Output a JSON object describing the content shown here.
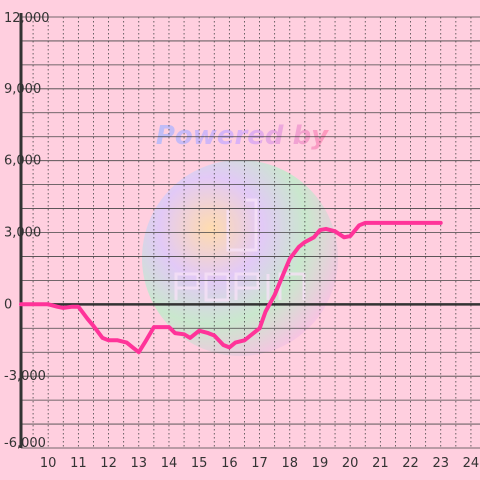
{
  "watermark": {
    "text": "Powered by",
    "brand": "pop-in"
  },
  "colors": {
    "background": "#ffcfdf",
    "line": "#ff3399",
    "grid": "#444444",
    "axis": "#333333",
    "zero_line": "#333333"
  },
  "chart_data": {
    "type": "line",
    "title": "",
    "xlabel": "",
    "ylabel": "",
    "xlim": [
      9.1,
      24.3
    ],
    "ylim": [
      -6000,
      12000
    ],
    "x_ticks": [
      10,
      11,
      12,
      13,
      14,
      15,
      16,
      17,
      18,
      19,
      20,
      21,
      22,
      23,
      24
    ],
    "x_tick_labels": [
      "10",
      "11",
      "12",
      "13",
      "14",
      "15",
      "16",
      "17",
      "18",
      "19",
      "20",
      "21",
      "22",
      "23",
      "24"
    ],
    "y_ticks": [
      -6000,
      -3000,
      0,
      3000,
      6000,
      9000,
      12000
    ],
    "y_tick_labels": [
      "-6,000",
      "-3,000",
      "0",
      "3,000",
      "6,000",
      "9,000",
      "12,000"
    ],
    "y_minor_step": 1000,
    "x_minor_step": 0.5,
    "grid": true,
    "series": [
      {
        "x": [
          9.1,
          10.0,
          10.3,
          10.5,
          10.8,
          11.0,
          11.3,
          11.5,
          11.8,
          12.0,
          12.3,
          12.6,
          12.8,
          13.0,
          13.2,
          13.5,
          13.7,
          14.0,
          14.2,
          14.5,
          14.7,
          15.0,
          15.3,
          15.5,
          15.8,
          16.0,
          16.2,
          16.5,
          16.7,
          17.0,
          17.2,
          17.5,
          17.8,
          18.0,
          18.3,
          18.5,
          18.8,
          19.0,
          19.2,
          19.5,
          19.8,
          20.0,
          20.3,
          20.5,
          21.0,
          22.0,
          23.0
        ],
        "y": [
          0,
          0,
          -100,
          -150,
          -100,
          -100,
          -600,
          -900,
          -1400,
          -1500,
          -1500,
          -1600,
          -1800,
          -2000,
          -1600,
          -950,
          -950,
          -950,
          -1200,
          -1250,
          -1400,
          -1100,
          -1200,
          -1300,
          -1700,
          -1800,
          -1600,
          -1500,
          -1300,
          -1000,
          -300,
          400,
          1300,
          1900,
          2400,
          2600,
          2800,
          3100,
          3150,
          3050,
          2800,
          2850,
          3300,
          3400,
          3400,
          3400,
          3400
        ]
      }
    ]
  }
}
